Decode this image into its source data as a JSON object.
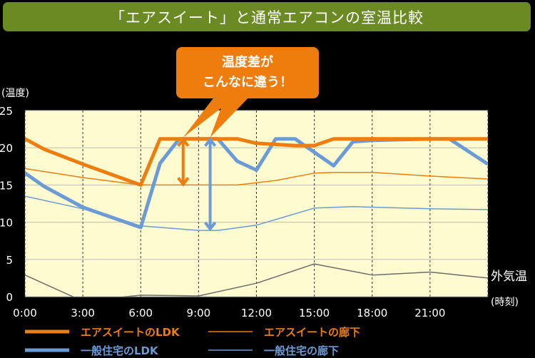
{
  "title": "「エアスイート」と通常エアコンの室温比較",
  "callout": {
    "line1": "温度差が",
    "line2": "こんなに違う！"
  },
  "colors": {
    "title_bg": "#6b8a23",
    "accent": "#ee7d0e",
    "blue": "#6b9bd6",
    "grey": "#6d6d6d",
    "plot_bg": "#fffbd0"
  },
  "chart_data": {
    "type": "line",
    "ylabel": "(温度)",
    "xlabel": "(時刻)",
    "ylim": [
      0,
      25
    ],
    "xlim": [
      0,
      24
    ],
    "yticks": [
      0,
      5,
      10,
      15,
      20,
      25
    ],
    "xticks": [
      "0:00",
      "3:00",
      "6:00",
      "9:00",
      "12:00",
      "15:00",
      "18:00",
      "21:00"
    ],
    "series": [
      {
        "name": "エアスイートのLDK",
        "color": "#ee7d0e",
        "width": 5,
        "points": [
          [
            0,
            21.2
          ],
          [
            1,
            19.8
          ],
          [
            3,
            17.8
          ],
          [
            6,
            15.0
          ],
          [
            7,
            21.2
          ],
          [
            9,
            21.2
          ],
          [
            11,
            21.2
          ],
          [
            12,
            20.6
          ],
          [
            14,
            20.3
          ],
          [
            15,
            20.3
          ],
          [
            16,
            21.2
          ],
          [
            18,
            21.2
          ],
          [
            21,
            21.2
          ],
          [
            24,
            21.2
          ]
        ]
      },
      {
        "name": "エアスイートの廊下",
        "color": "#ee7d0e",
        "width": 1.5,
        "points": [
          [
            0,
            17.2
          ],
          [
            3,
            16.0
          ],
          [
            6,
            15.0
          ],
          [
            9,
            15.0
          ],
          [
            11,
            15.0
          ],
          [
            13,
            15.6
          ],
          [
            15,
            16.6
          ],
          [
            16,
            16.7
          ],
          [
            18,
            16.7
          ],
          [
            21,
            16.2
          ],
          [
            24,
            15.8
          ]
        ]
      },
      {
        "name": "一般住宅のLDK",
        "color": "#6b9bd6",
        "width": 5,
        "points": [
          [
            0,
            16.6
          ],
          [
            1,
            14.8
          ],
          [
            3,
            12.0
          ],
          [
            6,
            9.3
          ],
          [
            7,
            17.9
          ],
          [
            8,
            21.2
          ],
          [
            10,
            21.2
          ],
          [
            11,
            18.2
          ],
          [
            12,
            17.0
          ],
          [
            13,
            21.2
          ],
          [
            14,
            21.2
          ],
          [
            16,
            17.6
          ],
          [
            17,
            20.8
          ],
          [
            18,
            21.0
          ],
          [
            21,
            21.2
          ],
          [
            22,
            21.2
          ],
          [
            24,
            17.8
          ]
        ]
      },
      {
        "name": "一般住宅の廊下",
        "color": "#6b9bd6",
        "width": 1.5,
        "points": [
          [
            0,
            13.5
          ],
          [
            3,
            11.8
          ],
          [
            6,
            9.5
          ],
          [
            9,
            8.9
          ],
          [
            10,
            8.9
          ],
          [
            12,
            9.6
          ],
          [
            15,
            11.9
          ],
          [
            17,
            12.1
          ],
          [
            21,
            11.8
          ],
          [
            24,
            11.7
          ]
        ]
      },
      {
        "name": "外気温",
        "color": "#6d6d6d",
        "width": 1.5,
        "legend": false,
        "points": [
          [
            0,
            2.9
          ],
          [
            3,
            -0.6
          ],
          [
            6,
            0.2
          ],
          [
            9,
            0.1
          ],
          [
            12,
            1.8
          ],
          [
            15,
            4.4
          ],
          [
            18,
            2.9
          ],
          [
            21,
            3.3
          ],
          [
            24,
            2.5
          ]
        ]
      }
    ],
    "annotations": [
      {
        "type": "double-arrow",
        "color": "#ee7d0e",
        "x": 8.2,
        "y1": 21.2,
        "y2": 15.0
      },
      {
        "type": "double-arrow",
        "color": "#6b9bd6",
        "x": 9.6,
        "y1": 21.2,
        "y2": 9.0
      },
      {
        "type": "line-label",
        "text": "外気温"
      }
    ]
  }
}
